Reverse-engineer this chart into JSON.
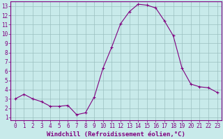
{
  "x": [
    0,
    1,
    2,
    3,
    4,
    5,
    6,
    7,
    8,
    9,
    10,
    11,
    12,
    13,
    14,
    15,
    16,
    17,
    18,
    19,
    20,
    21,
    22,
    23
  ],
  "y": [
    3.0,
    3.5,
    3.0,
    2.7,
    2.2,
    2.2,
    2.3,
    1.3,
    1.5,
    3.2,
    6.3,
    8.6,
    11.1,
    12.4,
    13.2,
    13.1,
    12.8,
    11.4,
    9.8,
    6.3,
    4.6,
    4.3,
    4.2,
    3.7
  ],
  "line_color": "#800080",
  "marker": "+",
  "marker_size": 3,
  "bg_color": "#c8eaea",
  "grid_color": "#9bbfbf",
  "xlabel": "Windchill (Refroidissement éolien,°C)",
  "xlim_min": -0.5,
  "xlim_max": 23.5,
  "ylim_min": 0.7,
  "ylim_max": 13.5,
  "xticks": [
    0,
    1,
    2,
    3,
    4,
    5,
    6,
    7,
    8,
    9,
    10,
    11,
    12,
    13,
    14,
    15,
    16,
    17,
    18,
    19,
    20,
    21,
    22,
    23
  ],
  "yticks": [
    1,
    2,
    3,
    4,
    5,
    6,
    7,
    8,
    9,
    10,
    11,
    12,
    13
  ],
  "tick_fontsize": 5.5,
  "xlabel_fontsize": 6.5,
  "line_width": 0.8,
  "spine_color": "#800080"
}
